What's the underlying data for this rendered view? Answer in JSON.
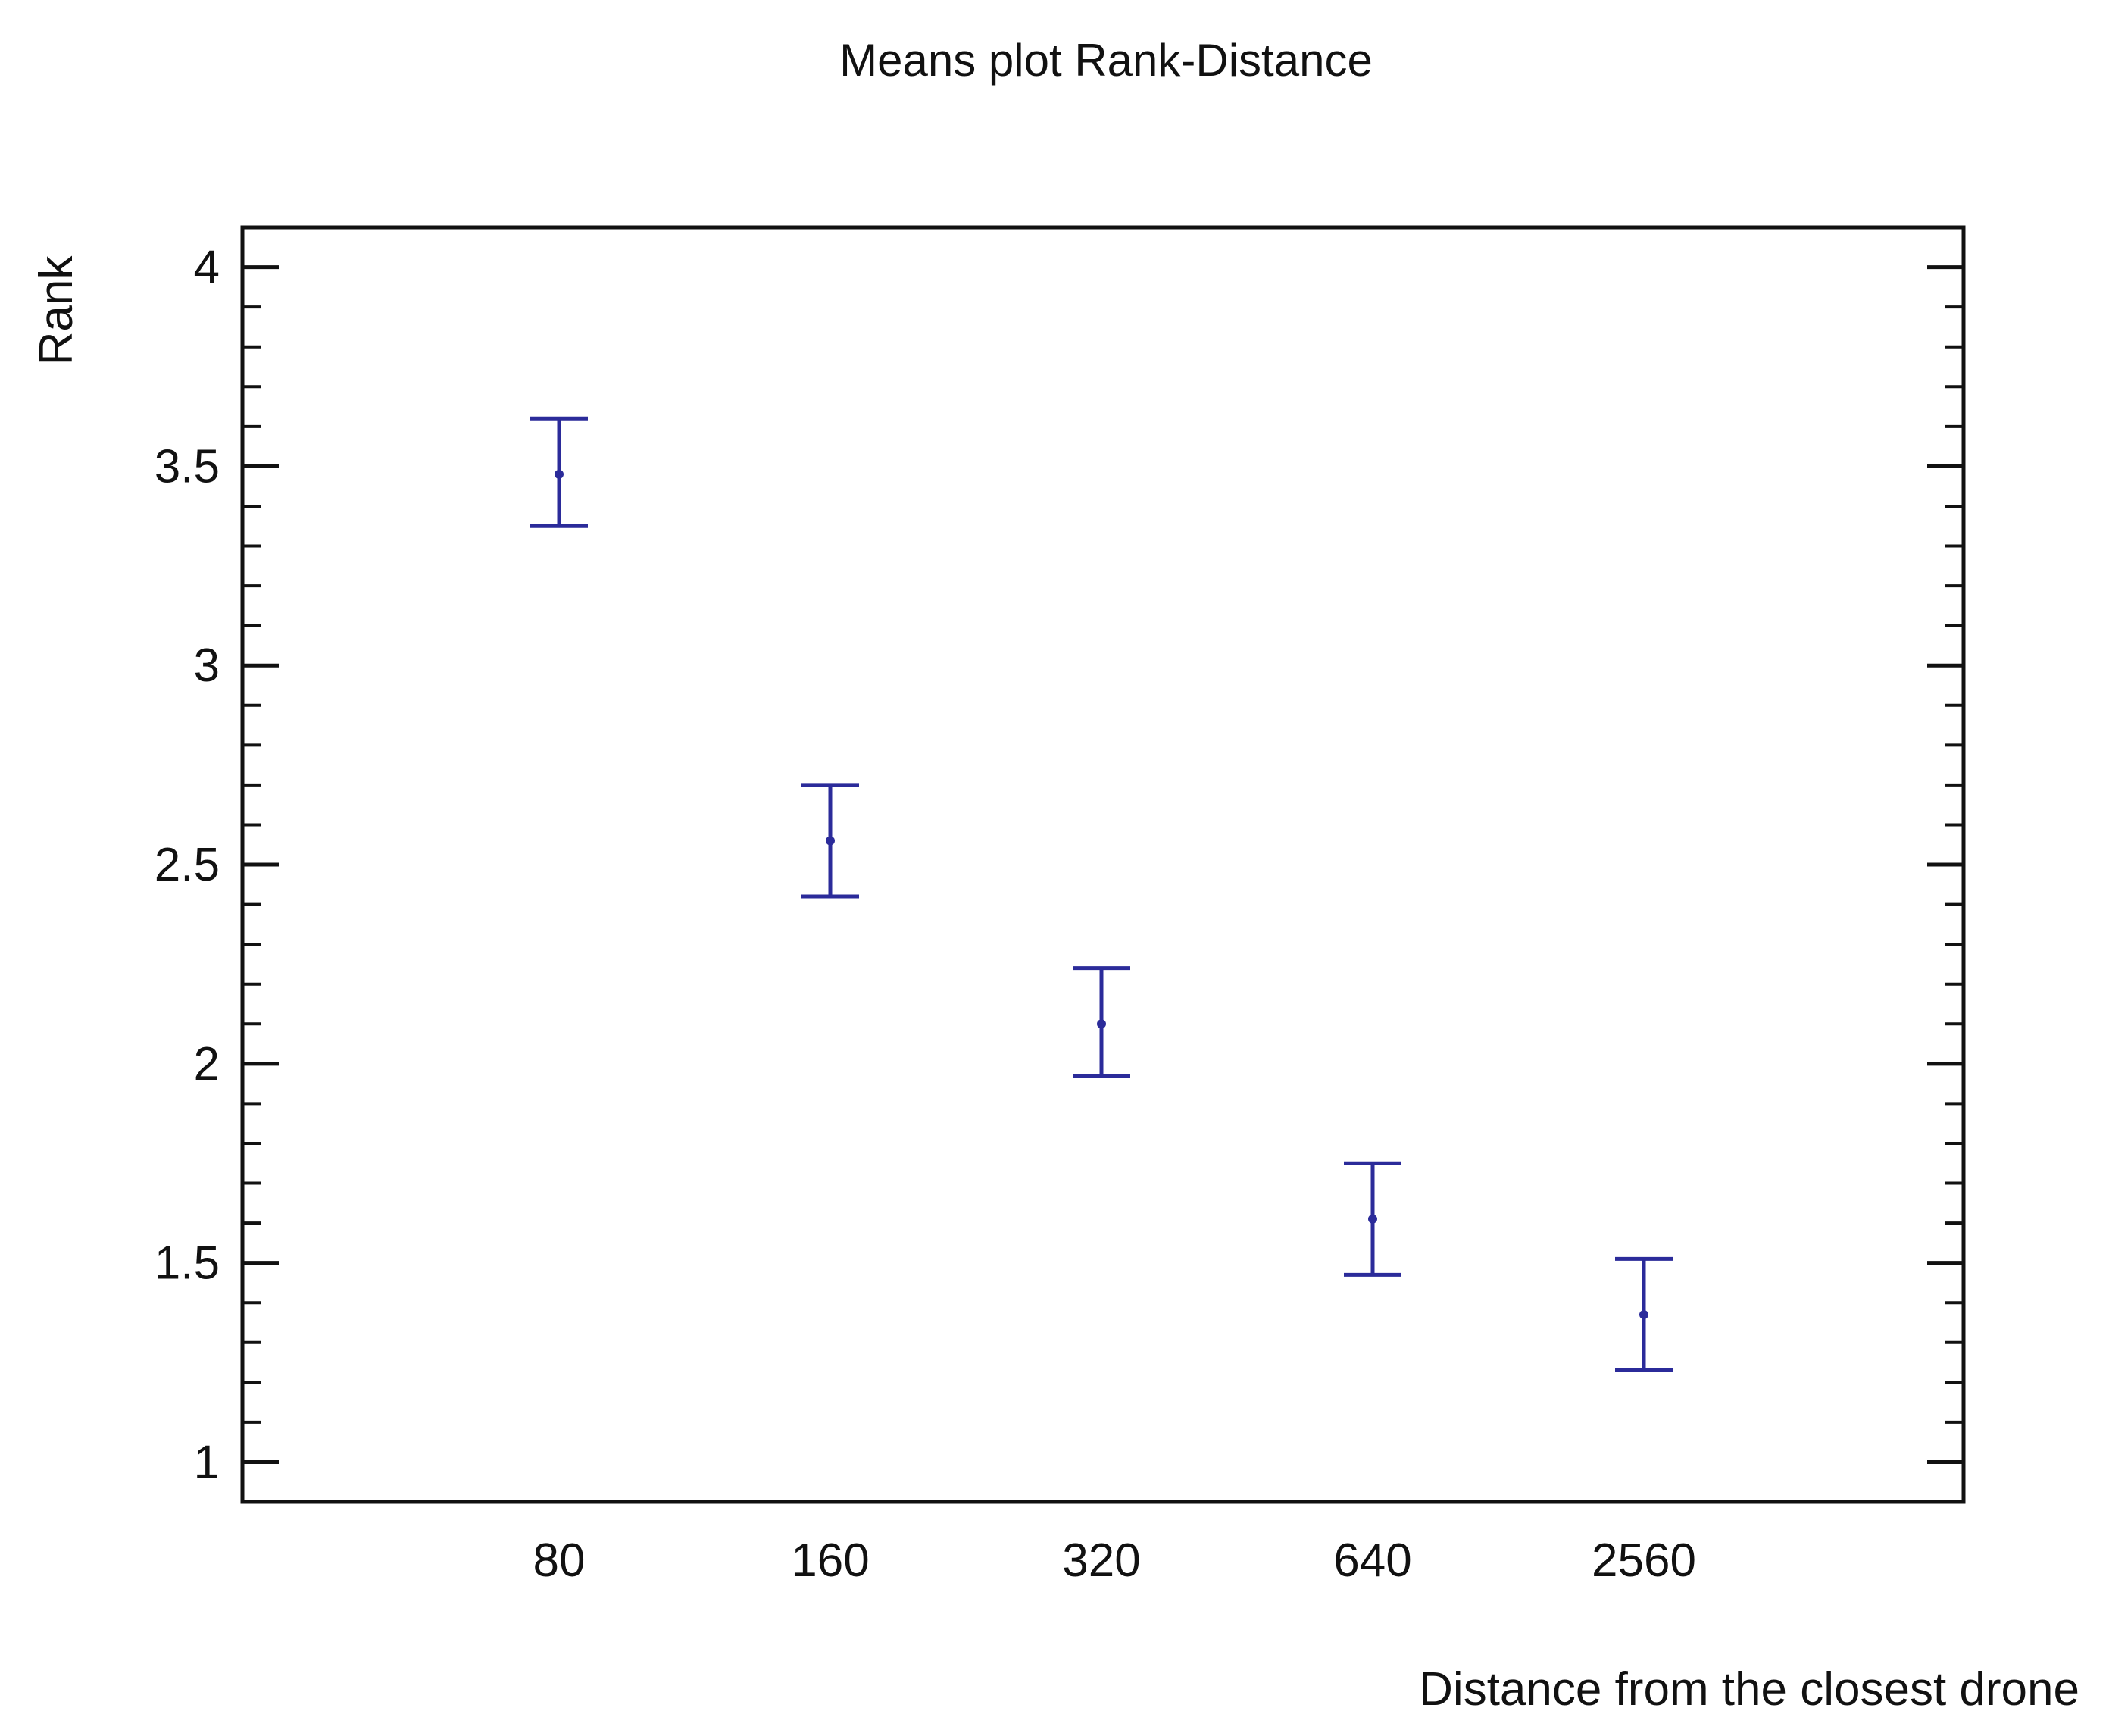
{
  "chart_data": {
    "type": "scatter",
    "title": "Means plot Rank-Distance",
    "xlabel": "Distance from the closest drone",
    "ylabel": "Rank",
    "categories": [
      "80",
      "160",
      "320",
      "640",
      "2560"
    ],
    "series": [
      {
        "means": [
          3.48,
          2.56,
          2.1,
          1.61,
          1.37
        ],
        "lower": [
          3.35,
          2.42,
          1.97,
          1.47,
          1.23
        ],
        "upper": [
          3.62,
          2.7,
          2.24,
          1.75,
          1.51
        ]
      }
    ],
    "ylim": [
      0.9,
      4.1
    ],
    "yticks": [
      "1",
      "1.5",
      "2",
      "2.5",
      "3",
      "3.5",
      "4"
    ],
    "grid": false,
    "color": "#2b2b9a",
    "axis_color": "#111111"
  }
}
